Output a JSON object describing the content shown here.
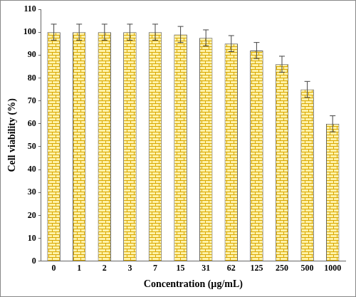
{
  "chart_data": {
    "type": "bar",
    "x_label": "Concentration (µg/mL)",
    "y_label": "Cell viability (%)",
    "categories": [
      "0",
      "1",
      "2",
      "3",
      "7",
      "15",
      "31",
      "62",
      "125",
      "250",
      "500",
      "1000"
    ],
    "values": [
      100,
      100,
      100,
      100,
      100,
      99,
      97.5,
      95,
      92,
      86,
      75,
      60
    ],
    "errors": [
      3.5,
      3.5,
      3.5,
      3.5,
      3.5,
      3.5,
      3.5,
      3.5,
      3.5,
      3.5,
      3.5,
      3.5
    ],
    "color": "#fff2a8",
    "ylim": [
      0,
      110
    ],
    "yticks": [
      0,
      10,
      20,
      30,
      40,
      50,
      60,
      70,
      80,
      90,
      100,
      110
    ],
    "grid": false
  }
}
